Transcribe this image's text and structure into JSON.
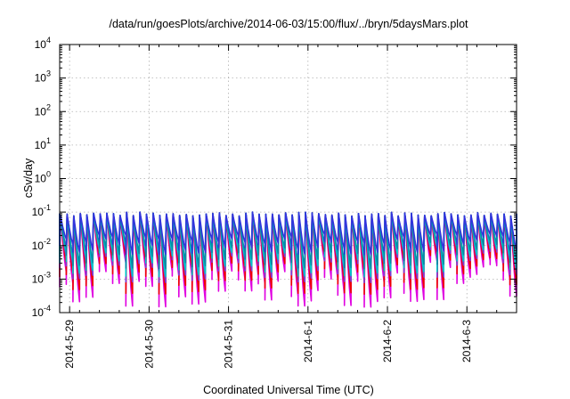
{
  "chart_data": {
    "type": "line",
    "title": "/data/run/goesPlots/archive/2014-06-03/15:00/flux/../bryn/5daysMars.plot",
    "xlabel": "Coordinated Universal Time (UTC)",
    "ylabel": "cSv/day",
    "y_scale": "log",
    "ylim": [
      0.0001,
      10000
    ],
    "y_ticks": [
      {
        "base": "10",
        "exp": "-4"
      },
      {
        "base": "10",
        "exp": "-3"
      },
      {
        "base": "10",
        "exp": "-2"
      },
      {
        "base": "10",
        "exp": "-1"
      },
      {
        "base": "10",
        "exp": "0"
      },
      {
        "base": "10",
        "exp": "1"
      },
      {
        "base": "10",
        "exp": "2"
      },
      {
        "base": "10",
        "exp": "3"
      },
      {
        "base": "10",
        "exp": "4"
      }
    ],
    "xlim": [
      "2014-05-28 21:00",
      "2014-06-03 15:00"
    ],
    "x_ticks": [
      "2014-5-29",
      "2014-5-30",
      "2014-5-31",
      "2014-6-1",
      "2014-6-2",
      "2014-6-3"
    ],
    "x_tick_dates": [
      "2014-05-29",
      "2014-05-30",
      "2014-05-31",
      "2014-06-01",
      "2014-06-02",
      "2014-06-03"
    ],
    "grid": true,
    "cycle_hours": 2,
    "peak_value": 0.09,
    "series": [
      {
        "color": "#3333dd",
        "trough_value": 0.012
      },
      {
        "color": "#0090a8",
        "trough_value": 0.006
      },
      {
        "color": "#00c8c8",
        "trough_value": 0.004
      },
      {
        "color": "#7a3ed6",
        "trough_value": 0.003
      },
      {
        "color": "#ee0000",
        "trough_value": 0.0017
      },
      {
        "color": "#e000e0",
        "trough_value": 0.0009
      }
    ]
  }
}
